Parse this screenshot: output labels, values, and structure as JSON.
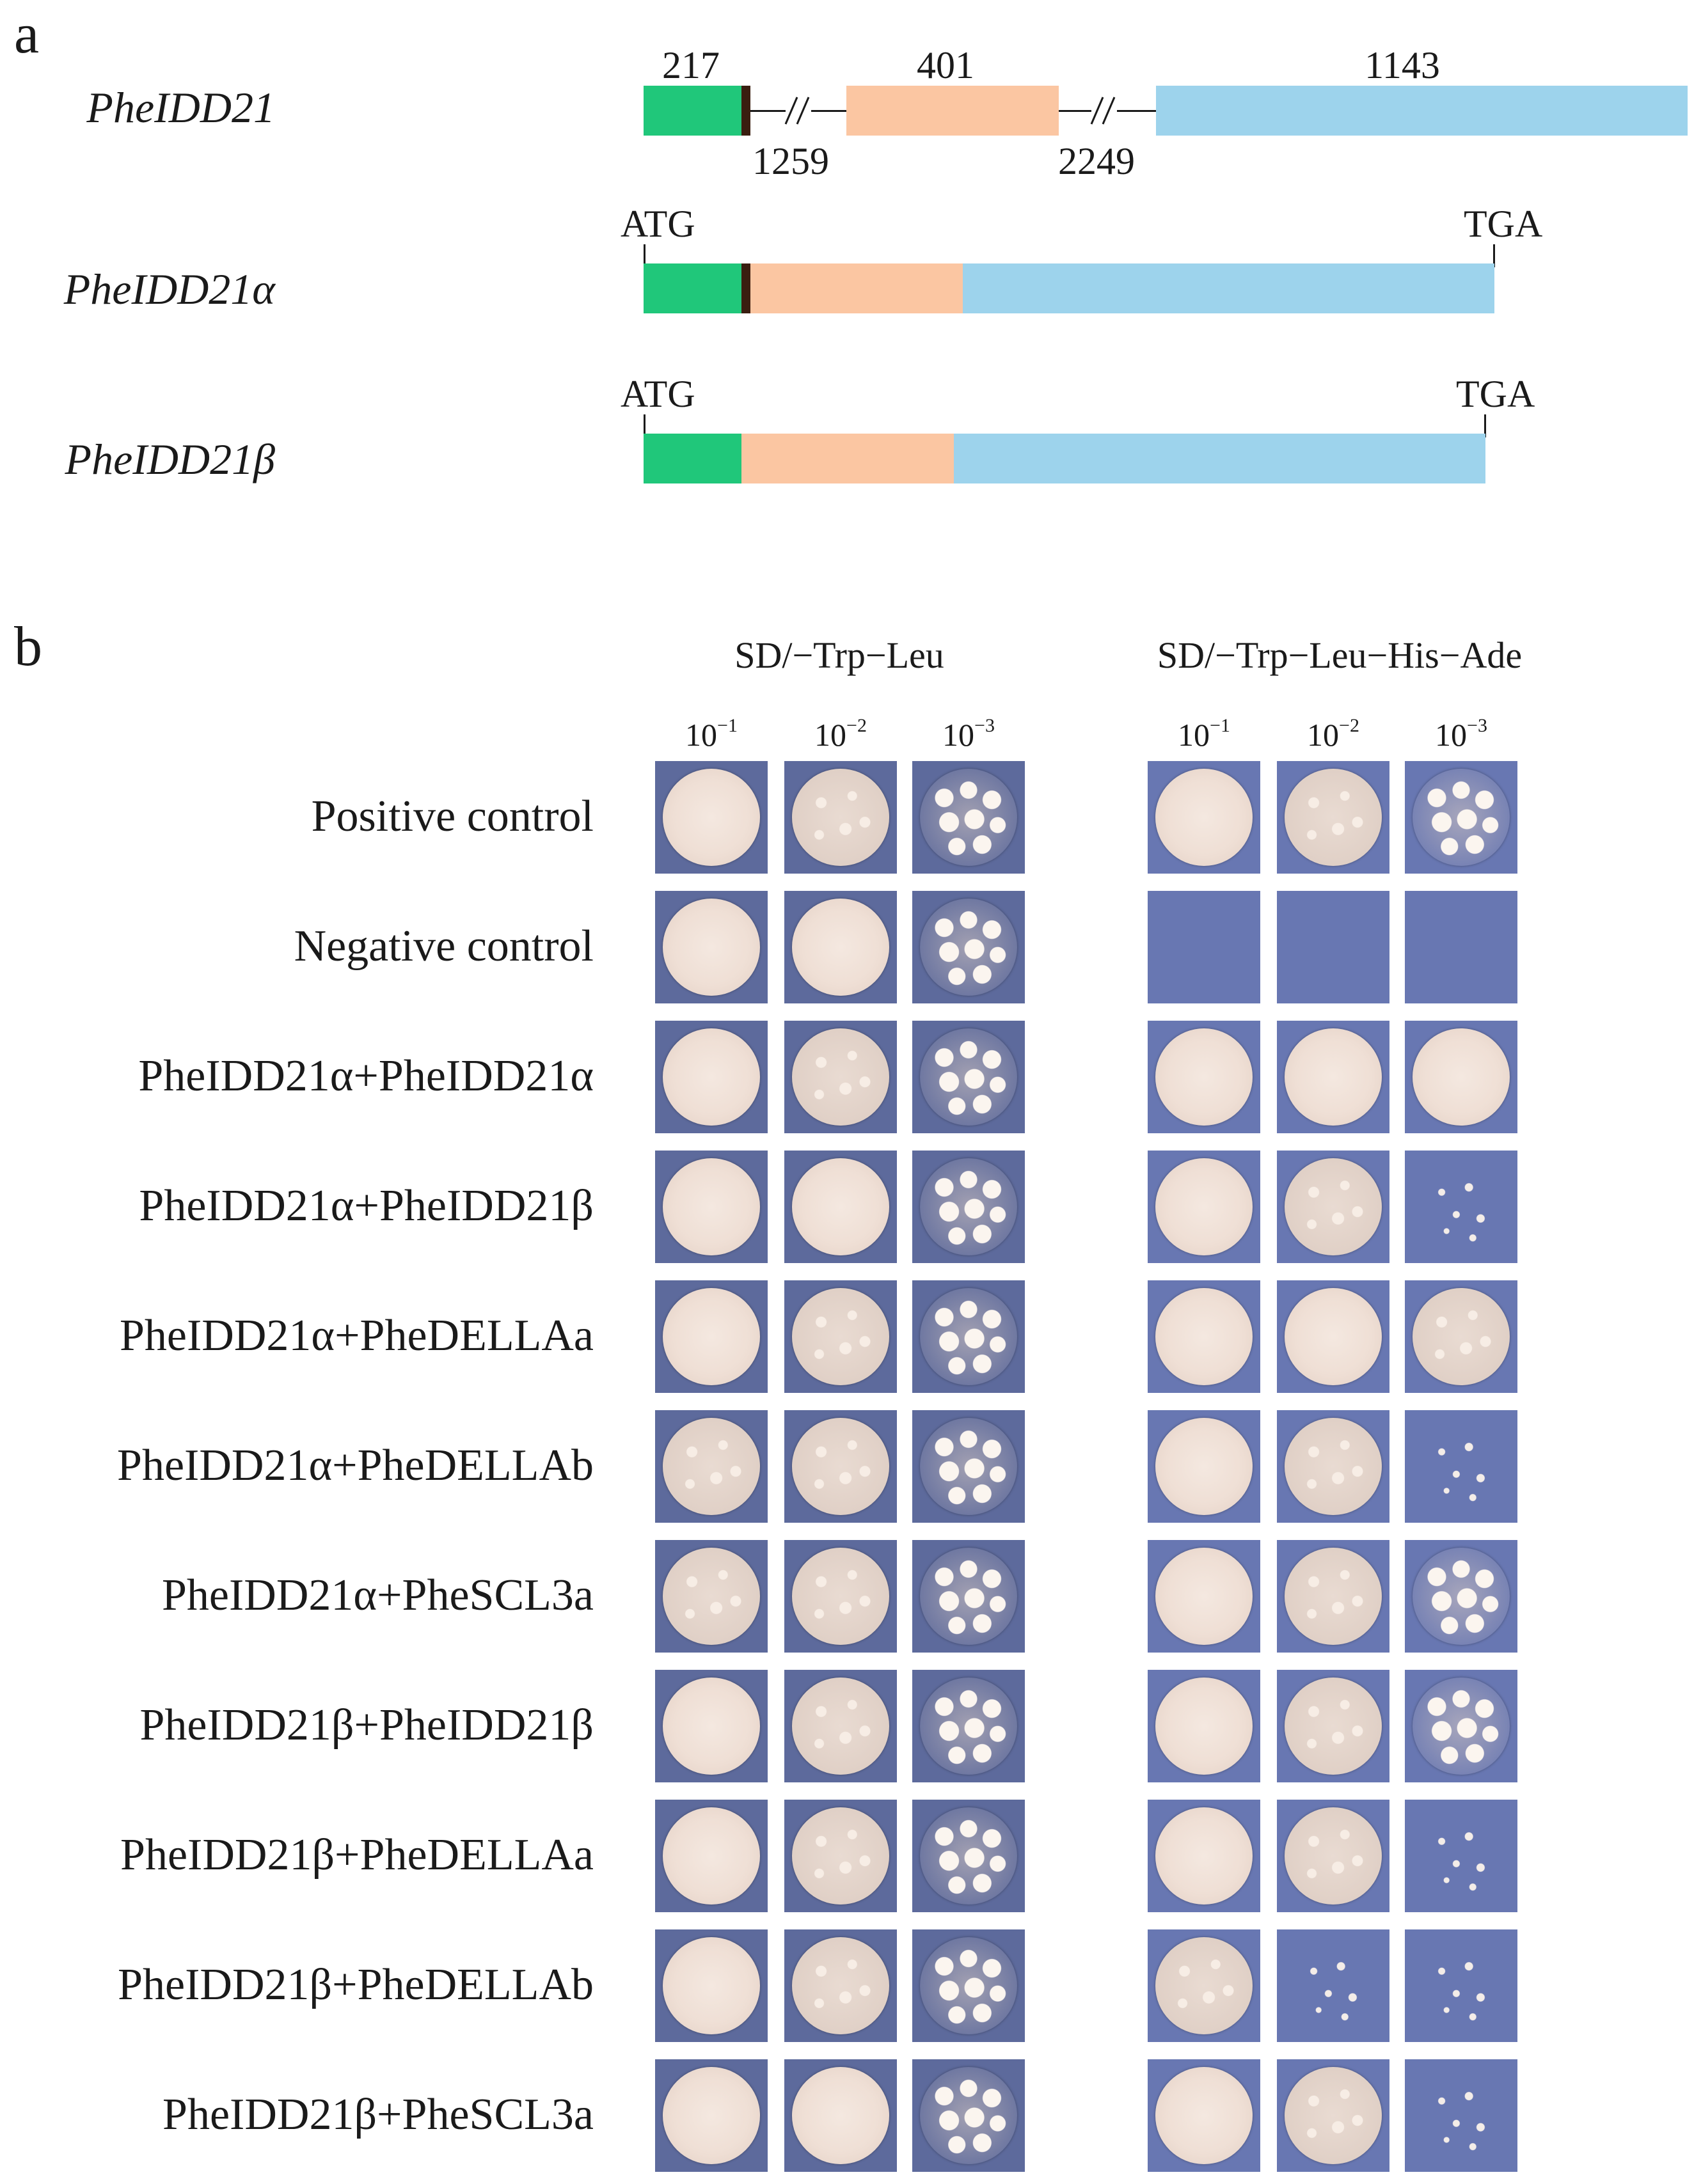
{
  "panel_a": {
    "letter": "a",
    "genes": [
      {
        "name": "PheIDD21",
        "exon_lengths": [
          "217",
          "401",
          "1143"
        ],
        "intron_lengths": [
          "1259",
          "2249"
        ]
      },
      {
        "name": "PheIDD21α",
        "start": "ATG",
        "stop": "TGA"
      },
      {
        "name": "PheIDD21β",
        "start": "ATG",
        "stop": "TGA"
      }
    ],
    "colors": {
      "exon1": "#20c77a",
      "exon2": "#fbc6a2",
      "exon3": "#9dd3ec",
      "junction": "#3a1e10"
    }
  },
  "panel_b": {
    "letter": "b",
    "conditions": [
      "SD/−Trp−Leu",
      "SD/−Trp−Leu−His−Ade"
    ],
    "dilutions": [
      {
        "base": "10",
        "exp": "−1"
      },
      {
        "base": "10",
        "exp": "−2"
      },
      {
        "base": "10",
        "exp": "−3"
      }
    ],
    "rows": [
      {
        "label": "Positive control",
        "growth_left": [
          "smooth",
          "grainy",
          "colonies"
        ],
        "growth_right": [
          "smooth",
          "grainy",
          "colonies"
        ]
      },
      {
        "label": "Negative control",
        "growth_left": [
          "smooth",
          "smooth",
          "colonies"
        ],
        "growth_right": [
          "none",
          "none",
          "none"
        ]
      },
      {
        "label": "PheIDD21α+PheIDD21α",
        "growth_left": [
          "smooth",
          "grainy",
          "colonies"
        ],
        "growth_right": [
          "smooth",
          "smooth",
          "smooth"
        ]
      },
      {
        "label": "PheIDD21α+PheIDD21β",
        "growth_left": [
          "smooth",
          "smooth",
          "colonies"
        ],
        "growth_right": [
          "smooth",
          "grainy",
          "sparse"
        ]
      },
      {
        "label": "PheIDD21α+PheDELLAa",
        "growth_left": [
          "smooth",
          "grainy",
          "colonies"
        ],
        "growth_right": [
          "smooth",
          "smooth",
          "grainy"
        ]
      },
      {
        "label": "PheIDD21α+PheDELLAb",
        "growth_left": [
          "grainy",
          "grainy",
          "colonies"
        ],
        "growth_right": [
          "smooth",
          "grainy",
          "sparse"
        ]
      },
      {
        "label": "PheIDD21α+PheSCL3a",
        "growth_left": [
          "grainy",
          "grainy",
          "colonies"
        ],
        "growth_right": [
          "smooth",
          "grainy",
          "colonies"
        ]
      },
      {
        "label": "PheIDD21β+PheIDD21β",
        "growth_left": [
          "smooth",
          "grainy",
          "colonies"
        ],
        "growth_right": [
          "smooth",
          "grainy",
          "colonies"
        ]
      },
      {
        "label": "PheIDD21β+PheDELLAa",
        "growth_left": [
          "smooth",
          "grainy",
          "colonies"
        ],
        "growth_right": [
          "smooth",
          "grainy",
          "sparse"
        ]
      },
      {
        "label": "PheIDD21β+PheDELLAb",
        "growth_left": [
          "smooth",
          "grainy",
          "colonies"
        ],
        "growth_right": [
          "grainy",
          "sparse",
          "sparse"
        ]
      },
      {
        "label": "PheIDD21β+PheSCL3a",
        "growth_left": [
          "smooth",
          "smooth",
          "colonies"
        ],
        "growth_right": [
          "smooth",
          "grainy",
          "sparse"
        ]
      }
    ],
    "colors": {
      "plate_left": "#5d6a9c",
      "plate_right": "#6877b2",
      "colony": "#f4e8e0"
    }
  }
}
